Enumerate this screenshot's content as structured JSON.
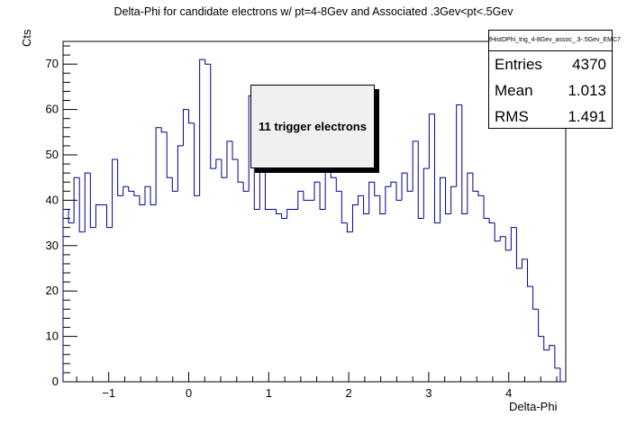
{
  "chart_data": {
    "type": "histogram",
    "title": "Delta-Phi for candidate electrons w/ pt=4-8Gev and Associated .3Gev<pt<.5Gev",
    "xlabel": "Delta-Phi",
    "ylabel": "Cts",
    "xlim": [
      -1.5708,
      4.7124
    ],
    "ylim": [
      0,
      75
    ],
    "x_ticks": [
      -1,
      0,
      1,
      2,
      3,
      4
    ],
    "y_ticks": [
      0,
      10,
      20,
      30,
      40,
      50,
      60,
      70
    ],
    "series": [
      {
        "line_color": "#00008b",
        "values": [
          38,
          35,
          45,
          33,
          46,
          34,
          39,
          39,
          34,
          49,
          41,
          43,
          42,
          41,
          39,
          43,
          39,
          56,
          55,
          45,
          42,
          52,
          60,
          57,
          41,
          71,
          70,
          47,
          49,
          45,
          53,
          49,
          44,
          42,
          63,
          38,
          60,
          38,
          38,
          37,
          36,
          38,
          38,
          42,
          40,
          40,
          44,
          38,
          55,
          45,
          42,
          35,
          33,
          39,
          41,
          37,
          44,
          41,
          37,
          43,
          44,
          40,
          46,
          42,
          53,
          36,
          47,
          59,
          35,
          45,
          37,
          43,
          61,
          37,
          46,
          42,
          41,
          36,
          35,
          31,
          32,
          29,
          34,
          25,
          27,
          21,
          16,
          10,
          7,
          8,
          3,
          0
        ]
      }
    ]
  },
  "stats": {
    "name": "fHistDPhi_trig_4-8Gev_assoc_.3-.5Gev_EMC7",
    "rows": [
      {
        "label": "Entries",
        "value": "4370"
      },
      {
        "label": "Mean",
        "value": "1.013"
      },
      {
        "label": "RMS",
        "value": "1.491"
      }
    ]
  },
  "annotation": "11 trigger electrons"
}
